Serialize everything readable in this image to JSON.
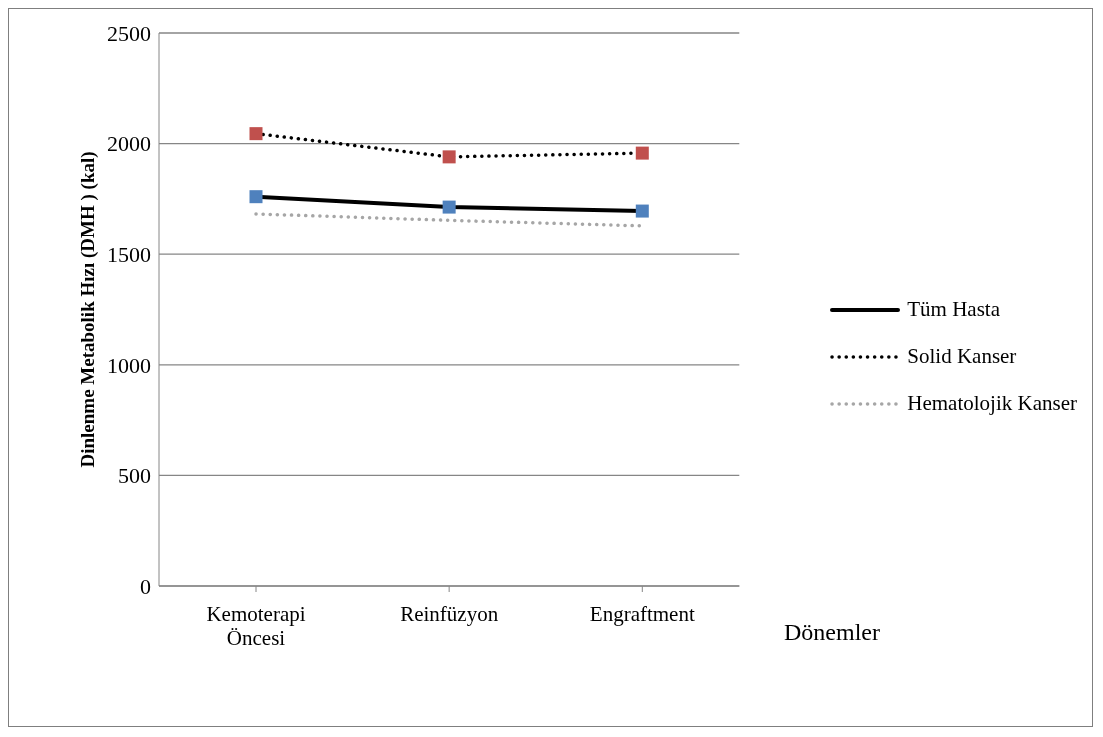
{
  "chart_data": {
    "type": "line",
    "ylabel": "Dinlenme Metabolik Hızı  (DMH ) (kal)",
    "annotations": [
      "Dönemler"
    ],
    "categories": [
      "Kemoterapi Öncesi",
      "Reinfüzyon",
      "Engraftment"
    ],
    "series": [
      {
        "name": "Tüm Hasta",
        "color": "#000000",
        "colors": [
          "#4f81bd",
          "#4f81bd",
          "#4f81bd"
        ],
        "marker": "square",
        "line_style": "solid",
        "values": [
          1760,
          1713,
          1695
        ]
      },
      {
        "name": "Solid Kanser",
        "color": "#000000",
        "colors": [
          "#c0504d",
          "#c0504d",
          "#c0504d"
        ],
        "marker": "square",
        "line_style": "dotted",
        "values": [
          2045,
          1940,
          1957
        ]
      },
      {
        "name": "Hematolojik Kanser",
        "color": "#a6a6a6",
        "marker": "none",
        "line_style": "dotted",
        "values": [
          1682,
          1653,
          1628
        ]
      }
    ],
    "ylim": [
      0,
      2500
    ],
    "yticks": [
      0,
      500,
      1000,
      1500,
      2000,
      2500
    ],
    "grid": "y",
    "legend": "right"
  }
}
